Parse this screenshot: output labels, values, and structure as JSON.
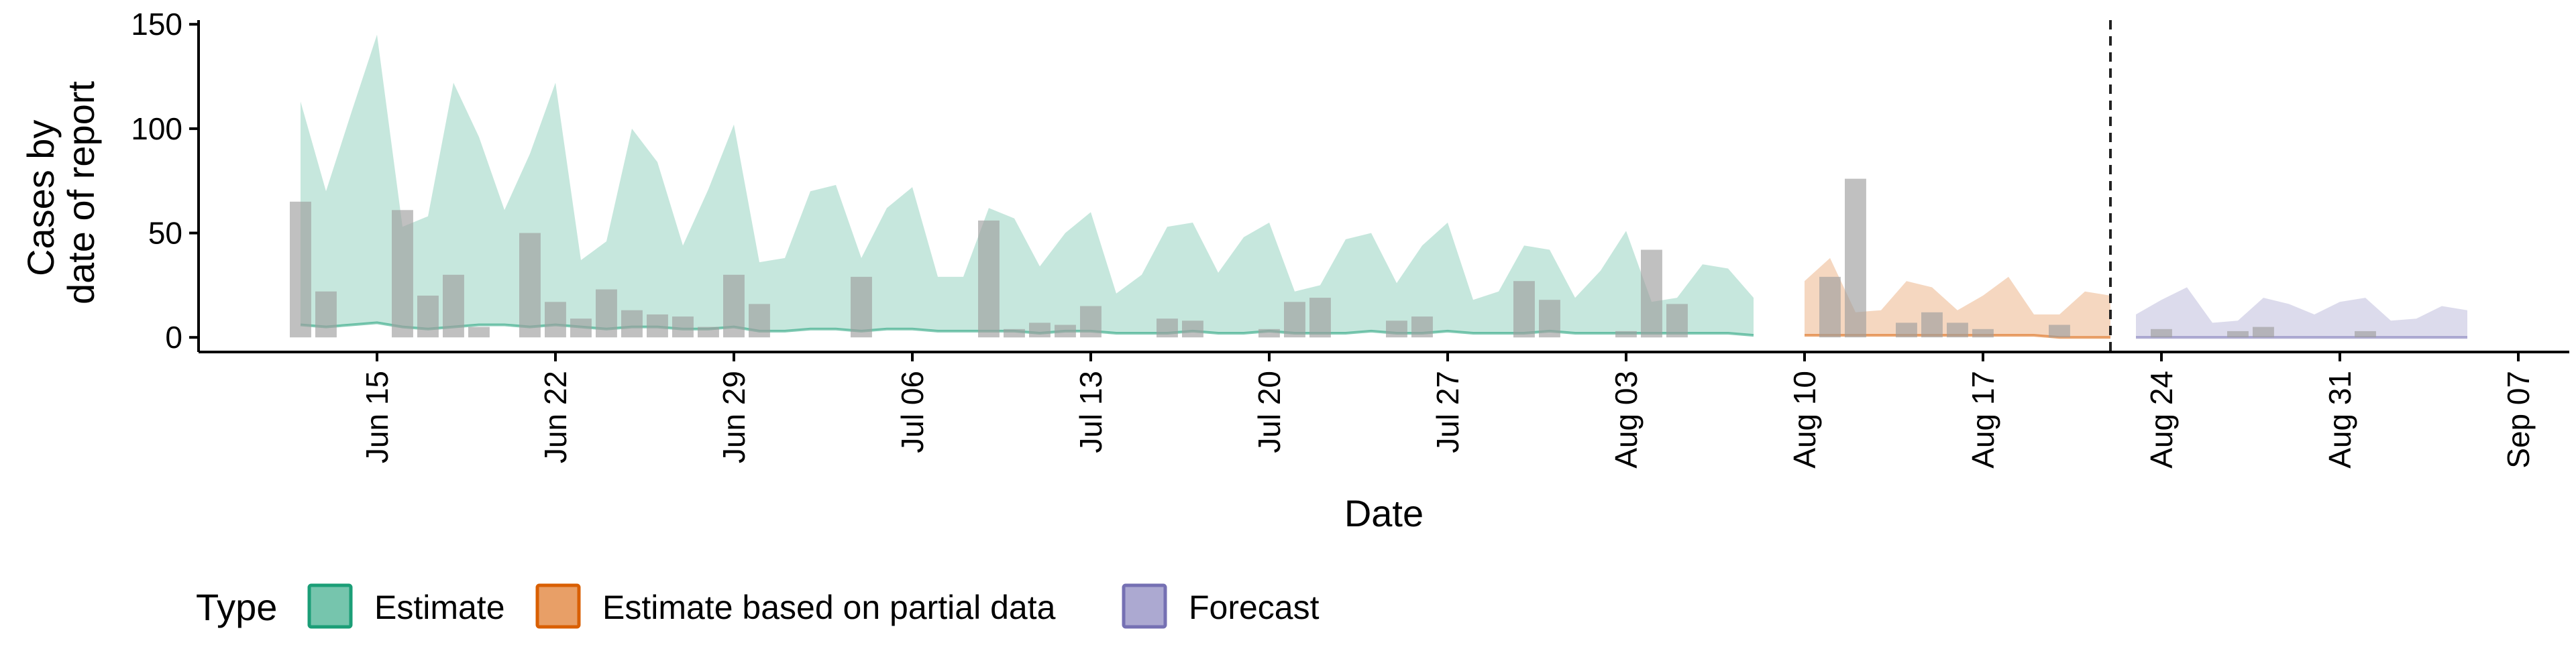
{
  "chart_data": {
    "type": "area",
    "xlabel": "Date",
    "ylabel_lines": [
      "Cases by",
      "date of report"
    ],
    "x_domain": [
      "2020-06-08",
      "2020-09-09"
    ],
    "ylim": [
      -7,
      152
    ],
    "y_ticks": [
      0,
      50,
      100,
      150
    ],
    "x_ticks": [
      {
        "date": "2020-06-15",
        "label": "Jun 15"
      },
      {
        "date": "2020-06-22",
        "label": "Jun 22"
      },
      {
        "date": "2020-06-29",
        "label": "Jun 29"
      },
      {
        "date": "2020-07-06",
        "label": "Jul 06"
      },
      {
        "date": "2020-07-13",
        "label": "Jul 13"
      },
      {
        "date": "2020-07-20",
        "label": "Jul 20"
      },
      {
        "date": "2020-07-27",
        "label": "Jul 27"
      },
      {
        "date": "2020-08-03",
        "label": "Aug 03"
      },
      {
        "date": "2020-08-10",
        "label": "Aug 10"
      },
      {
        "date": "2020-08-17",
        "label": "Aug 17"
      },
      {
        "date": "2020-08-24",
        "label": "Aug 24"
      },
      {
        "date": "2020-08-31",
        "label": "Aug 31"
      },
      {
        "date": "2020-09-07",
        "label": "Sep 07"
      }
    ],
    "forecast_date": "2020-08-22",
    "grid": false,
    "legend": {
      "position": "bottom",
      "title": "Type",
      "entries": [
        {
          "label": "Estimate",
          "fill": "#1B9E77",
          "stroke": "#1B9E77"
        },
        {
          "label": "Estimate based on partial data",
          "fill": "#D95F02",
          "stroke": "#D95F02"
        },
        {
          "label": "Forecast",
          "fill": "#7570B3",
          "stroke": "#7570B3"
        }
      ]
    },
    "colors": {
      "estimate": "#1B9E77",
      "partial": "#D95F02",
      "forecast": "#7570B3",
      "observed_bar": "#9e9e9e",
      "axis": "#000000"
    },
    "series": [
      {
        "type": "Estimate",
        "start": "2020-06-12",
        "upper": [
          113,
          70,
          108,
          145,
          53,
          58,
          122,
          96,
          61,
          88,
          122,
          37,
          46,
          100,
          84,
          44,
          71,
          102,
          36,
          38,
          70,
          73,
          38,
          62,
          72,
          29,
          29,
          62,
          57,
          34,
          50,
          60,
          21,
          30,
          53,
          55,
          31,
          48,
          55,
          22,
          25,
          47,
          50,
          26,
          44,
          55,
          18,
          22,
          44,
          42,
          19,
          32,
          51,
          17,
          19,
          35,
          33,
          19
        ],
        "lower": [
          6,
          5,
          6,
          7,
          5,
          4,
          5,
          6,
          6,
          5,
          6,
          5,
          4,
          5,
          5,
          4,
          4,
          5,
          3,
          3,
          4,
          4,
          3,
          4,
          4,
          3,
          3,
          3,
          3,
          2,
          3,
          3,
          2,
          2,
          2,
          3,
          2,
          2,
          3,
          2,
          2,
          2,
          3,
          2,
          2,
          3,
          2,
          2,
          2,
          3,
          2,
          2,
          2,
          2,
          2,
          2,
          2,
          1
        ]
      },
      {
        "type": "Estimate based on partial data",
        "start": "2020-08-10",
        "upper": [
          27,
          38,
          12,
          13,
          27,
          24,
          13,
          20,
          29,
          11,
          11,
          22,
          20
        ],
        "lower": [
          1,
          1,
          1,
          1,
          1,
          1,
          1,
          1,
          1,
          1,
          0,
          0,
          0
        ]
      },
      {
        "type": "Forecast",
        "start": "2020-08-23",
        "upper": [
          11,
          18,
          24,
          7,
          8,
          19,
          16,
          11,
          17,
          19,
          8,
          9,
          15,
          13
        ],
        "lower": [
          0,
          0,
          0,
          0,
          0,
          0,
          0,
          0,
          0,
          0,
          0,
          0,
          0,
          0
        ]
      }
    ],
    "observed_cases": {
      "start": "2020-06-12",
      "values": [
        65,
        22,
        0,
        0,
        61,
        20,
        30,
        5,
        0,
        50,
        17,
        9,
        23,
        13,
        11,
        10,
        5,
        30,
        16,
        0,
        0,
        0,
        29,
        0,
        0,
        0,
        0,
        56,
        4,
        7,
        6,
        15,
        0,
        0,
        9,
        8,
        0,
        0,
        4,
        17,
        19,
        0,
        0,
        8,
        10,
        0,
        0,
        0,
        27,
        18,
        0,
        0,
        3,
        42,
        16,
        0,
        0,
        0,
        0,
        0,
        29,
        76,
        0,
        7,
        12,
        7,
        4,
        0,
        0,
        6,
        0,
        0,
        0,
        4,
        0,
        0,
        3,
        5,
        0,
        0,
        0,
        3,
        0
      ]
    }
  }
}
